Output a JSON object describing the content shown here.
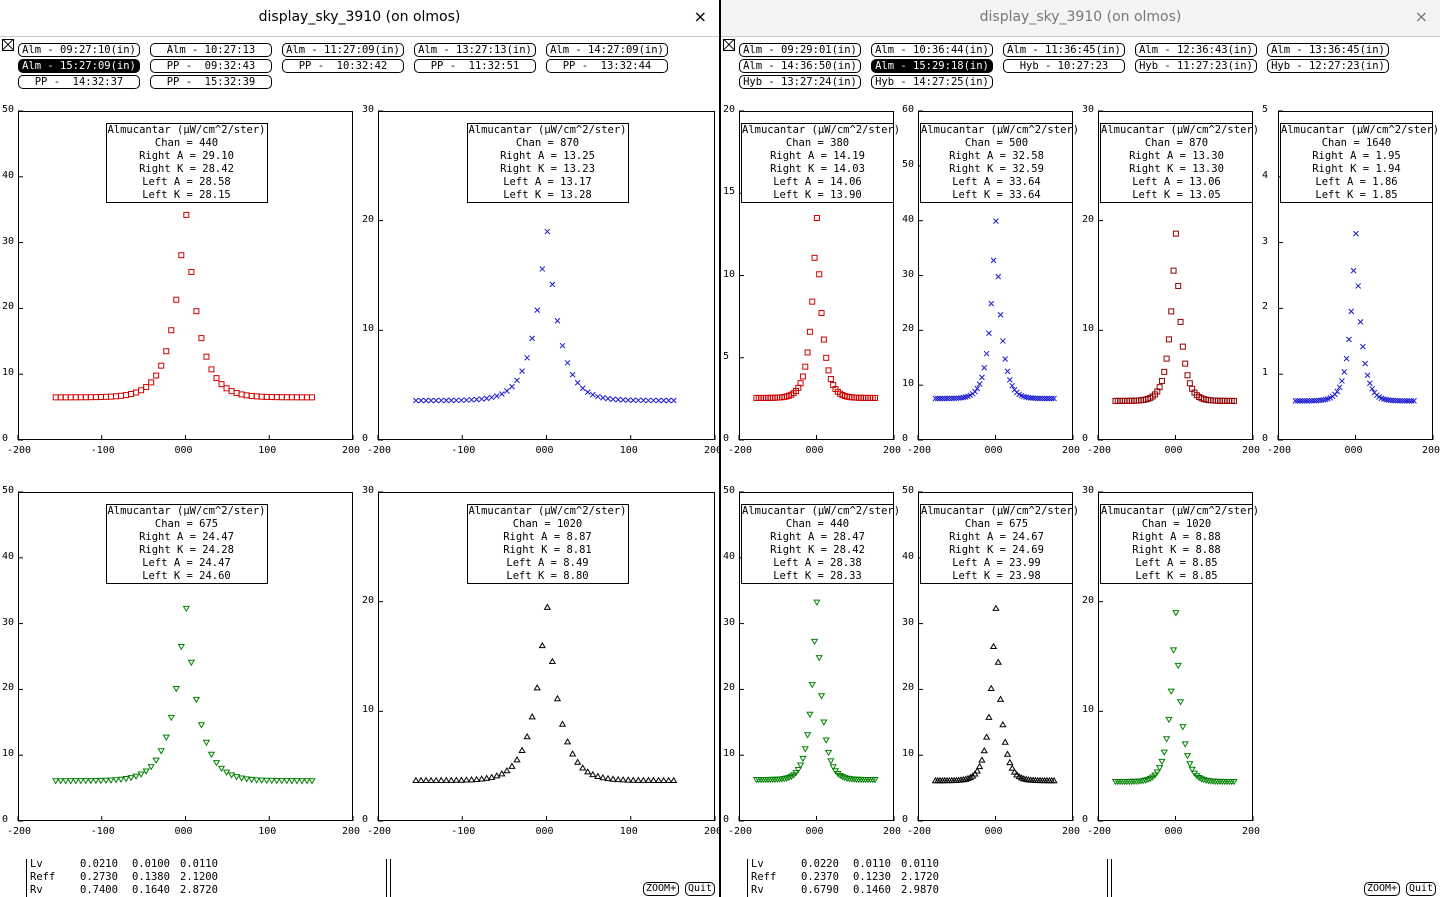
{
  "windows": [
    {
      "title": "display_sky_3910 (on olmos)",
      "close_glyph": "×",
      "active": true,
      "chips": [
        [
          "Alm - 09:27:10(in)",
          "Alm - 10:27:13",
          "Alm - 11:27:09(in)",
          "Alm - 13:27:13(in)",
          "Alm - 14:27:09(in)"
        ],
        [
          "Alm - 15:27:09(in)",
          "PP -  09:32:43",
          "PP -  10:32:42",
          "PP -  11:32:51",
          "PP -  13:32:44"
        ],
        [
          "PP -  14:32:37",
          "PP -  15:32:39"
        ]
      ],
      "selected_chip": "Alm - 15:27:09(in)",
      "plots": [
        {
          "box": [
            "Almucantar (µW/cm^2/ster)",
            "Chan = 440",
            "Right A = 29.10",
            "Right K = 28.42",
            "Left A = 28.58",
            "Left K = 28.15"
          ],
          "color": "#d00000",
          "marker": "square",
          "yticks": [
            "0",
            "10",
            "20",
            "30",
            "40",
            "50"
          ],
          "xticks": [
            "-200",
            "-100",
            "000",
            "100",
            "200"
          ],
          "ymax": 50,
          "peak": 36
        },
        {
          "box": [
            "Almucantar (µW/cm^2/ster)",
            "Chan = 870",
            "Right A = 13.25",
            "Right K = 13.23",
            "Left A = 13.17",
            "Left K = 13.28"
          ],
          "color": "#1a1ad0",
          "marker": "x",
          "yticks": [
            "0",
            "10",
            "20",
            "30"
          ],
          "xticks": [
            "-200",
            "-100",
            "000",
            "100",
            "200"
          ],
          "ymax": 30,
          "peak": 20
        },
        {
          "box": [
            "Almucantar (µW/cm^2/ster)",
            "Chan = 675",
            "Right A = 24.47",
            "Right K = 24.28",
            "Left A = 24.47",
            "Left K = 24.60"
          ],
          "color": "#008000",
          "marker": "tri-down",
          "yticks": [
            "0",
            "10",
            "20",
            "30",
            "40",
            "50"
          ],
          "xticks": [
            "-200",
            "-100",
            "000",
            "100",
            "200"
          ],
          "ymax": 50,
          "peak": 34
        },
        {
          "box": [
            "Almucantar (µW/cm^2/ster)",
            "Chan = 1020",
            "Right A = 8.87",
            "Right K = 8.81",
            "Left A = 8.49",
            "Left K = 8.80"
          ],
          "color": "#000000",
          "marker": "tri-up",
          "yticks": [
            "0",
            "10",
            "20",
            "30"
          ],
          "xticks": [
            "-200",
            "-100",
            "000",
            "100",
            "200"
          ],
          "ymax": 30,
          "peak": 20.5
        }
      ],
      "bottom_rows": [
        [
          "Lv",
          "0.0210",
          "0.0100",
          "0.0110"
        ],
        [
          "Reff",
          "0.2730",
          "0.1380",
          "2.1200"
        ],
        [
          "Rv",
          "0.7400",
          "0.1640",
          "2.8720"
        ]
      ],
      "zoom_label": "ZOOM+",
      "quit_label": "Quit"
    },
    {
      "title": "display_sky_3910 (on olmos)",
      "close_glyph": "×",
      "active": false,
      "chips": [
        [
          "Alm - 09:29:01(in)",
          "Alm - 10:36:44(in)",
          "Alm - 11:36:45(in)",
          "Alm - 12:36:43(in)",
          "Alm - 13:36:45(in)"
        ],
        [
          "Alm - 14:36:50(in)",
          "Alm - 15:29:18(in)",
          "Hyb - 10:27:23",
          "Hyb - 11:27:23(in)",
          "Hyb - 12:27:23(in)"
        ],
        [
          "Hyb - 13:27:24(in)",
          "Hyb - 14:27:25(in)"
        ]
      ],
      "selected_chip": "Alm - 15:29:18(in)",
      "plots": [
        {
          "box": [
            "Almucantar (µW/cm^2/ster)",
            "Chan = 380",
            "Right A = 14.19",
            "Right K = 14.03",
            "Left A = 14.06",
            "Left K = 13.90"
          ],
          "color": "#d00000",
          "marker": "square",
          "yticks": [
            "0",
            "5",
            "10",
            "15",
            "20"
          ],
          "xticks": [
            "-200",
            "000",
            "200"
          ],
          "ymax": 20,
          "peak": 14.2
        },
        {
          "box": [
            "Almucantar (µW/cm^2/ster)",
            "Chan = 500",
            "Right A = 32.58",
            "Right K = 32.59",
            "Left A = 33.64",
            "Left K = 33.64"
          ],
          "color": "#1a1ad0",
          "marker": "x",
          "yticks": [
            "0",
            "10",
            "20",
            "30",
            "40",
            "50",
            "60"
          ],
          "xticks": [
            "-200",
            "000",
            "200"
          ],
          "ymax": 60,
          "peak": 42
        },
        {
          "box": [
            "Almucantar (µW/cm^2/ster)",
            "Chan = 870",
            "Right A = 13.30",
            "Right K = 13.30",
            "Left A = 13.06",
            "Left K = 13.05"
          ],
          "color": "#900000",
          "marker": "square",
          "yticks": [
            "0",
            "10",
            "20",
            "30"
          ],
          "xticks": [
            "-200",
            "000",
            "200"
          ],
          "ymax": 30,
          "peak": 19.8
        },
        {
          "box": [
            "Almucantar (µW/cm^2/ster)",
            "Chan = 1640",
            "Right A = 1.95",
            "Right K = 1.94",
            "Left A = 1.86",
            "Left K = 1.85"
          ],
          "color": "#1a1ad0",
          "marker": "x",
          "yticks": [
            "0",
            "1",
            "2",
            "3",
            "4",
            "5"
          ],
          "xticks": [
            "-200",
            "000",
            "200"
          ],
          "ymax": 5,
          "peak": 3.3
        },
        {
          "box": [
            "Almucantar (µW/cm^2/ster)",
            "Chan = 440",
            "Right A = 28.47",
            "Right K = 28.42",
            "Left A = 28.38",
            "Left K = 28.33"
          ],
          "color": "#008000",
          "marker": "tri-down",
          "yticks": [
            "0",
            "10",
            "20",
            "30",
            "40",
            "50"
          ],
          "xticks": [
            "-200",
            "000",
            "200"
          ],
          "ymax": 50,
          "peak": 35
        },
        {
          "box": [
            "Almucantar (µW/cm^2/ster)",
            "Chan = 675",
            "Right A = 24.67",
            "Right K = 24.69",
            "Left A = 23.99",
            "Left K = 23.98"
          ],
          "color": "#000000",
          "marker": "tri-up",
          "yticks": [
            "0",
            "10",
            "20",
            "30",
            "40",
            "50"
          ],
          "xticks": [
            "-200",
            "000",
            "200"
          ],
          "ymax": 50,
          "peak": 34
        },
        {
          "box": [
            "Almucantar (µW/cm^2/ster)",
            "Chan = 1020",
            "Right A = 8.88",
            "Right K = 8.88",
            "Left A = 8.85",
            "Left K = 8.85"
          ],
          "color": "#008000",
          "marker": "tri-down",
          "yticks": [
            "0",
            "10",
            "20",
            "30"
          ],
          "xticks": [
            "-200",
            "000",
            "200"
          ],
          "ymax": 30,
          "peak": 20
        }
      ],
      "bottom_rows": [
        [
          "Lv",
          "0.0220",
          "0.0110",
          "0.0110"
        ],
        [
          "Reff",
          "0.2370",
          "0.1230",
          "2.1720"
        ],
        [
          "Rv",
          "0.6790",
          "0.1460",
          "2.9870"
        ]
      ],
      "zoom_label": "ZOOM+",
      "quit_label": "Quit"
    }
  ]
}
